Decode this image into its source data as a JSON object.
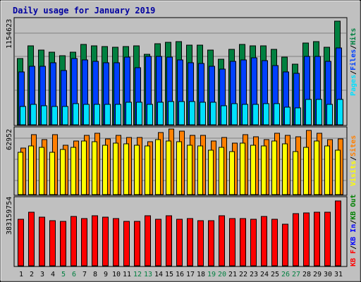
{
  "chart_data": {
    "type": "bar",
    "title": "Daily usage for January 2019",
    "days": [
      "1",
      "2",
      "3",
      "4",
      "5",
      "6",
      "7",
      "8",
      "9",
      "10",
      "11",
      "12",
      "13",
      "14",
      "15",
      "16",
      "17",
      "18",
      "19",
      "20",
      "21",
      "22",
      "23",
      "24",
      "25",
      "26",
      "27",
      "28",
      "29",
      "30",
      "31"
    ],
    "weekend_days": [
      "5",
      "6",
      "12",
      "13",
      "19",
      "20",
      "26",
      "27"
    ],
    "colors": {
      "hits": "#008040",
      "files": "#0040FF",
      "pages": "#00E0FF",
      "visits": "#FFFF00",
      "sites": "#FF8000",
      "kbin": "#0000FF",
      "kbout": "#008000",
      "kbf": "#FF0000",
      "weekend_label": "#008040",
      "weekday_label": "#000000",
      "title": "#0000A0"
    },
    "top_panel": {
      "max_label": "1154623",
      "ymax": 1154623,
      "legend": [
        "Pages",
        "/",
        "Files",
        "/",
        "Hits"
      ],
      "series": [
        {
          "name": "Hits",
          "values": [
            722000,
            863000,
            813000,
            794000,
            754000,
            795000,
            880000,
            863000,
            855000,
            850000,
            851000,
            865000,
            773000,
            887000,
            900000,
            909000,
            866000,
            871000,
            814000,
            719000,
            820000,
            876000,
            860000,
            865000,
            825000,
            741000,
            664000,
            890000,
            905000,
            845000,
            1130000
          ]
        },
        {
          "name": "Files",
          "values": [
            580000,
            640000,
            640000,
            680000,
            590000,
            720000,
            710000,
            690000,
            680000,
            680000,
            740000,
            620000,
            750000,
            750000,
            740000,
            710000,
            680000,
            670000,
            640000,
            610000,
            690000,
            710000,
            730000,
            700000,
            650000,
            580000,
            560000,
            750000,
            750000,
            690000,
            840000
          ]
        },
        {
          "name": "Pages",
          "values": [
            200000,
            220000,
            210000,
            200000,
            200000,
            230000,
            220000,
            220000,
            220000,
            220000,
            250000,
            245000,
            225000,
            250000,
            255000,
            255000,
            255000,
            245000,
            245000,
            205000,
            230000,
            225000,
            225000,
            230000,
            230000,
            190000,
            185000,
            280000,
            280000,
            220000,
            275000
          ]
        }
      ]
    },
    "middle_panel": {
      "max_label": "62952",
      "ymax": 62952,
      "legend": [
        "Visits",
        "/",
        "Sites"
      ],
      "series": [
        {
          "name": "Sites",
          "values": [
            44000,
            57000,
            52000,
            57000,
            47000,
            51000,
            56000,
            58000,
            53000,
            56000,
            54000,
            54000,
            50000,
            59000,
            62000,
            60000,
            56000,
            56000,
            51000,
            54000,
            49000,
            57000,
            55000,
            52000,
            58000,
            56000,
            55000,
            61000,
            58000,
            52000,
            53000
          ]
        },
        {
          "name": "Visits",
          "values": [
            40000,
            46000,
            45000,
            40000,
            43000,
            45000,
            51000,
            50000,
            47000,
            49000,
            48000,
            47000,
            46000,
            52000,
            51000,
            50000,
            47000,
            46000,
            42000,
            45000,
            41000,
            49000,
            47000,
            46000,
            51000,
            48000,
            41000,
            45000,
            51000,
            46000,
            42000
          ]
        }
      ]
    },
    "bottom_panel": {
      "max_label": "383159754",
      "ymax": 383159754,
      "legend": [
        "KB F",
        "/",
        "KB In",
        "/",
        "KB Out"
      ],
      "series": [
        {
          "name": "KB F",
          "values": [
            270000000,
            310000000,
            280000000,
            260000000,
            255000000,
            285000000,
            275000000,
            290000000,
            280000000,
            275000000,
            255000000,
            255000000,
            290000000,
            270000000,
            290000000,
            270000000,
            275000000,
            260000000,
            260000000,
            290000000,
            275000000,
            275000000,
            270000000,
            285000000,
            270000000,
            240000000,
            300000000,
            305000000,
            310000000,
            310000000,
            375000000
          ]
        }
      ]
    }
  }
}
